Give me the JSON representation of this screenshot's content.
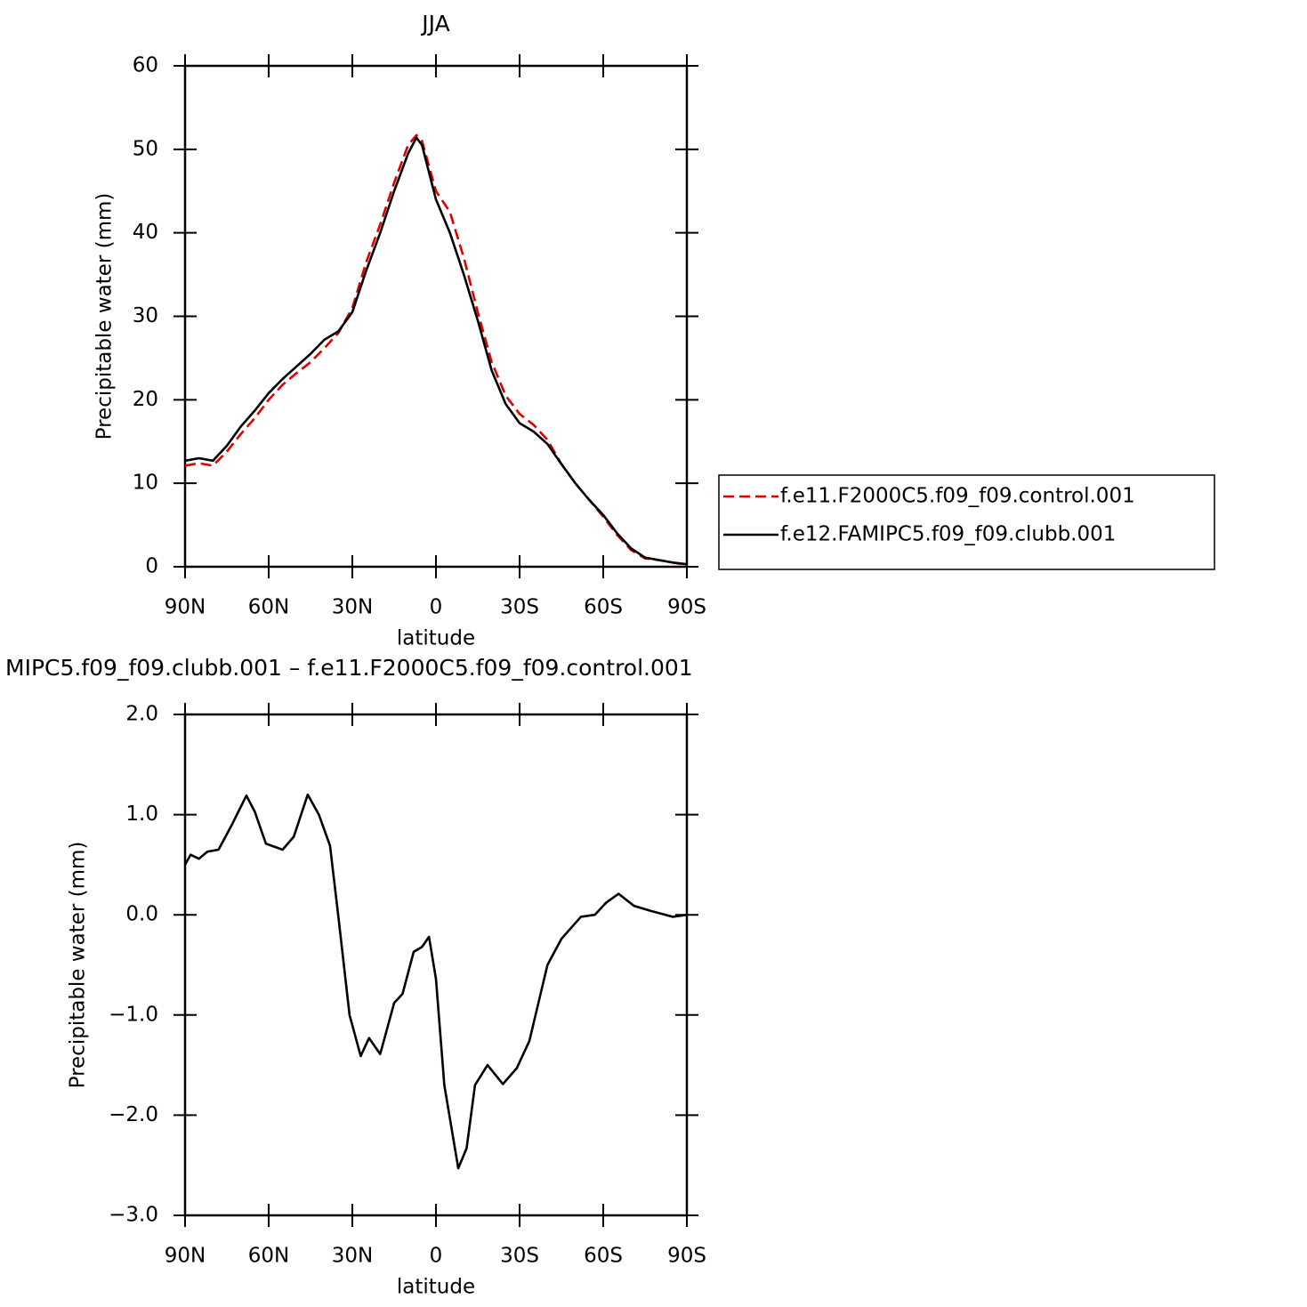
{
  "chart_data": [
    {
      "type": "line",
      "title": "JJA",
      "xlabel": "latitude",
      "ylabel": "Precipitable water (mm)",
      "x": [
        90,
        85,
        80,
        75,
        70,
        65,
        60,
        55,
        50,
        45,
        40,
        35,
        30,
        25,
        20,
        15,
        10,
        7,
        5,
        0,
        -5,
        -10,
        -15,
        -20,
        -25,
        -30,
        -35,
        -40,
        -45,
        -50,
        -55,
        -60,
        -65,
        -70,
        -75,
        -80,
        -85,
        -90
      ],
      "series": [
        {
          "name": "f.e11.F2000C5.f09_f09.control.001",
          "color": "#e00000",
          "dash": "dashed",
          "values": [
            12.1,
            12.4,
            12.1,
            13.8,
            15.9,
            17.8,
            20.0,
            21.8,
            23.2,
            24.5,
            26.2,
            28.0,
            31.0,
            36.5,
            41.0,
            46.0,
            50.5,
            51.7,
            51.0,
            45.0,
            42.5,
            37.0,
            30.5,
            24.5,
            20.5,
            18.3,
            17.0,
            15.2,
            12.3,
            10.0,
            8.0,
            6.0,
            3.8,
            2.0,
            1.0,
            0.8,
            0.5,
            0.2
          ]
        },
        {
          "name": "f.e12.FAMIPC5.f09_f09.clubb.001",
          "color": "#000000",
          "dash": "solid",
          "values": [
            12.7,
            13.0,
            12.7,
            14.5,
            16.8,
            18.7,
            20.8,
            22.5,
            24.0,
            25.5,
            27.2,
            28.2,
            30.5,
            35.5,
            40.0,
            45.0,
            49.5,
            51.4,
            50.5,
            44.0,
            40.0,
            35.0,
            29.5,
            23.5,
            19.5,
            17.2,
            16.2,
            14.7,
            12.3,
            10.0,
            8.0,
            6.2,
            4.0,
            2.2,
            1.1,
            0.8,
            0.5,
            0.3
          ]
        }
      ],
      "xlim": [
        90,
        -90
      ],
      "xticks": [
        {
          "value": 90,
          "label": "90N"
        },
        {
          "value": 60,
          "label": "60N"
        },
        {
          "value": 30,
          "label": "30N"
        },
        0,
        {
          "value": -30,
          "label": "30S"
        },
        {
          "value": -60,
          "label": "60S"
        },
        {
          "value": -90,
          "label": "90S"
        }
      ],
      "ylim": [
        0,
        60
      ],
      "yticks": [
        0,
        10,
        20,
        30,
        40,
        50,
        60
      ],
      "grid": false,
      "legend": "right"
    },
    {
      "type": "line",
      "title": "MIPC5.f09_f09.clubb.001 – f.e11.F2000C5.f09_f09.control.001",
      "xlabel": "latitude",
      "ylabel": "Precipitable water (mm)",
      "x": [
        90,
        88,
        85,
        82,
        78,
        73,
        68,
        65,
        61,
        55,
        51,
        46,
        42,
        38,
        35,
        31,
        27,
        24,
        20,
        15,
        12,
        8,
        5,
        2.5,
        0,
        -3,
        -8,
        -11,
        -14,
        -18.5,
        -24,
        -29,
        -33.5,
        -40,
        -45,
        -52,
        -57,
        -61,
        -65.5,
        -71,
        -77,
        -85,
        -90
      ],
      "values": [
        0.5,
        0.6,
        0.56,
        0.63,
        0.65,
        0.91,
        1.19,
        1.03,
        0.71,
        0.65,
        0.78,
        1.2,
        1.0,
        0.69,
        -0.02,
        -1.0,
        -1.41,
        -1.23,
        -1.39,
        -0.88,
        -0.79,
        -0.37,
        -0.32,
        -0.22,
        -0.64,
        -1.7,
        -2.53,
        -2.33,
        -1.7,
        -1.5,
        -1.69,
        -1.53,
        -1.26,
        -0.5,
        -0.24,
        -0.02,
        0,
        0.12,
        0.21,
        0.09,
        0.04,
        -0.02,
        0
      ],
      "color": "#000000",
      "xlim": [
        90,
        -90
      ],
      "xticks": [
        {
          "value": 90,
          "label": "90N"
        },
        {
          "value": 60,
          "label": "60N"
        },
        {
          "value": 30,
          "label": "30N"
        },
        0,
        {
          "value": -30,
          "label": "30S"
        },
        {
          "value": -60,
          "label": "60S"
        },
        {
          "value": -90,
          "label": "90S"
        }
      ],
      "ylim": [
        -3,
        2
      ],
      "yticks": [
        {
          "value": -3,
          "label": "−3.0"
        },
        {
          "value": -2,
          "label": "−2.0"
        },
        {
          "value": -1,
          "label": "−1.0"
        },
        {
          "value": 0,
          "label": "0.0"
        },
        {
          "value": 1,
          "label": "1.0"
        },
        {
          "value": 2,
          "label": "2.0"
        }
      ],
      "grid": false
    }
  ]
}
